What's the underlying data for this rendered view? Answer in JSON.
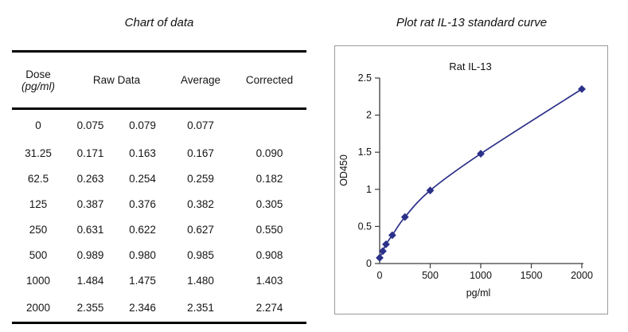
{
  "left_panel": {
    "title": "Chart of data",
    "table": {
      "headers": {
        "dose": "Dose",
        "dose_unit": "(pg/ml)",
        "raw": "Raw Data",
        "average": "Average",
        "corrected": "Corrected"
      },
      "rows": [
        {
          "dose": "0",
          "raw1": "0.075",
          "raw2": "0.079",
          "average": "0.077",
          "corrected": ""
        },
        {
          "dose": "31.25",
          "raw1": "0.171",
          "raw2": "0.163",
          "average": "0.167",
          "corrected": "0.090"
        },
        {
          "dose": "62.5",
          "raw1": "0.263",
          "raw2": "0.254",
          "average": "0.259",
          "corrected": "0.182"
        },
        {
          "dose": "125",
          "raw1": "0.387",
          "raw2": "0.376",
          "average": "0.382",
          "corrected": "0.305"
        },
        {
          "dose": "250",
          "raw1": "0.631",
          "raw2": "0.622",
          "average": "0.627",
          "corrected": "0.550"
        },
        {
          "dose": "500",
          "raw1": "0.989",
          "raw2": "0.980",
          "average": "0.985",
          "corrected": "0.908"
        },
        {
          "dose": "1000",
          "raw1": "1.484",
          "raw2": "1.475",
          "average": "1.480",
          "corrected": "1.403"
        },
        {
          "dose": "2000",
          "raw1": "2.355",
          "raw2": "2.346",
          "average": "2.351",
          "corrected": "2.274"
        }
      ]
    }
  },
  "right_panel": {
    "title": "Plot rat IL-13 standard curve"
  },
  "chart_data": {
    "type": "line",
    "title": "Rat  IL-13",
    "xlabel": "pg/ml",
    "ylabel": "OD450",
    "series": [
      {
        "name": "Rat IL-13",
        "x": [
          0,
          31.25,
          62.5,
          125,
          250,
          500,
          1000,
          2000
        ],
        "y": [
          0.077,
          0.167,
          0.259,
          0.382,
          0.627,
          0.985,
          1.48,
          2.351
        ]
      }
    ],
    "xlim": [
      0,
      2000
    ],
    "ylim": [
      0,
      2.5
    ],
    "xticks": [
      0,
      500,
      1000,
      1500,
      2000
    ],
    "yticks": [
      0,
      0.5,
      1,
      1.5,
      2,
      2.5
    ],
    "xtick_labels": [
      "0",
      "500",
      "1000",
      "1500",
      "2000"
    ],
    "ytick_labels": [
      "0",
      "0.5",
      "1",
      "1.5",
      "2",
      "2.5"
    ],
    "line_color": "#2b3189",
    "axis_color": "#3c3c3c",
    "marker": "diamond",
    "grid": false,
    "legend": "none"
  }
}
